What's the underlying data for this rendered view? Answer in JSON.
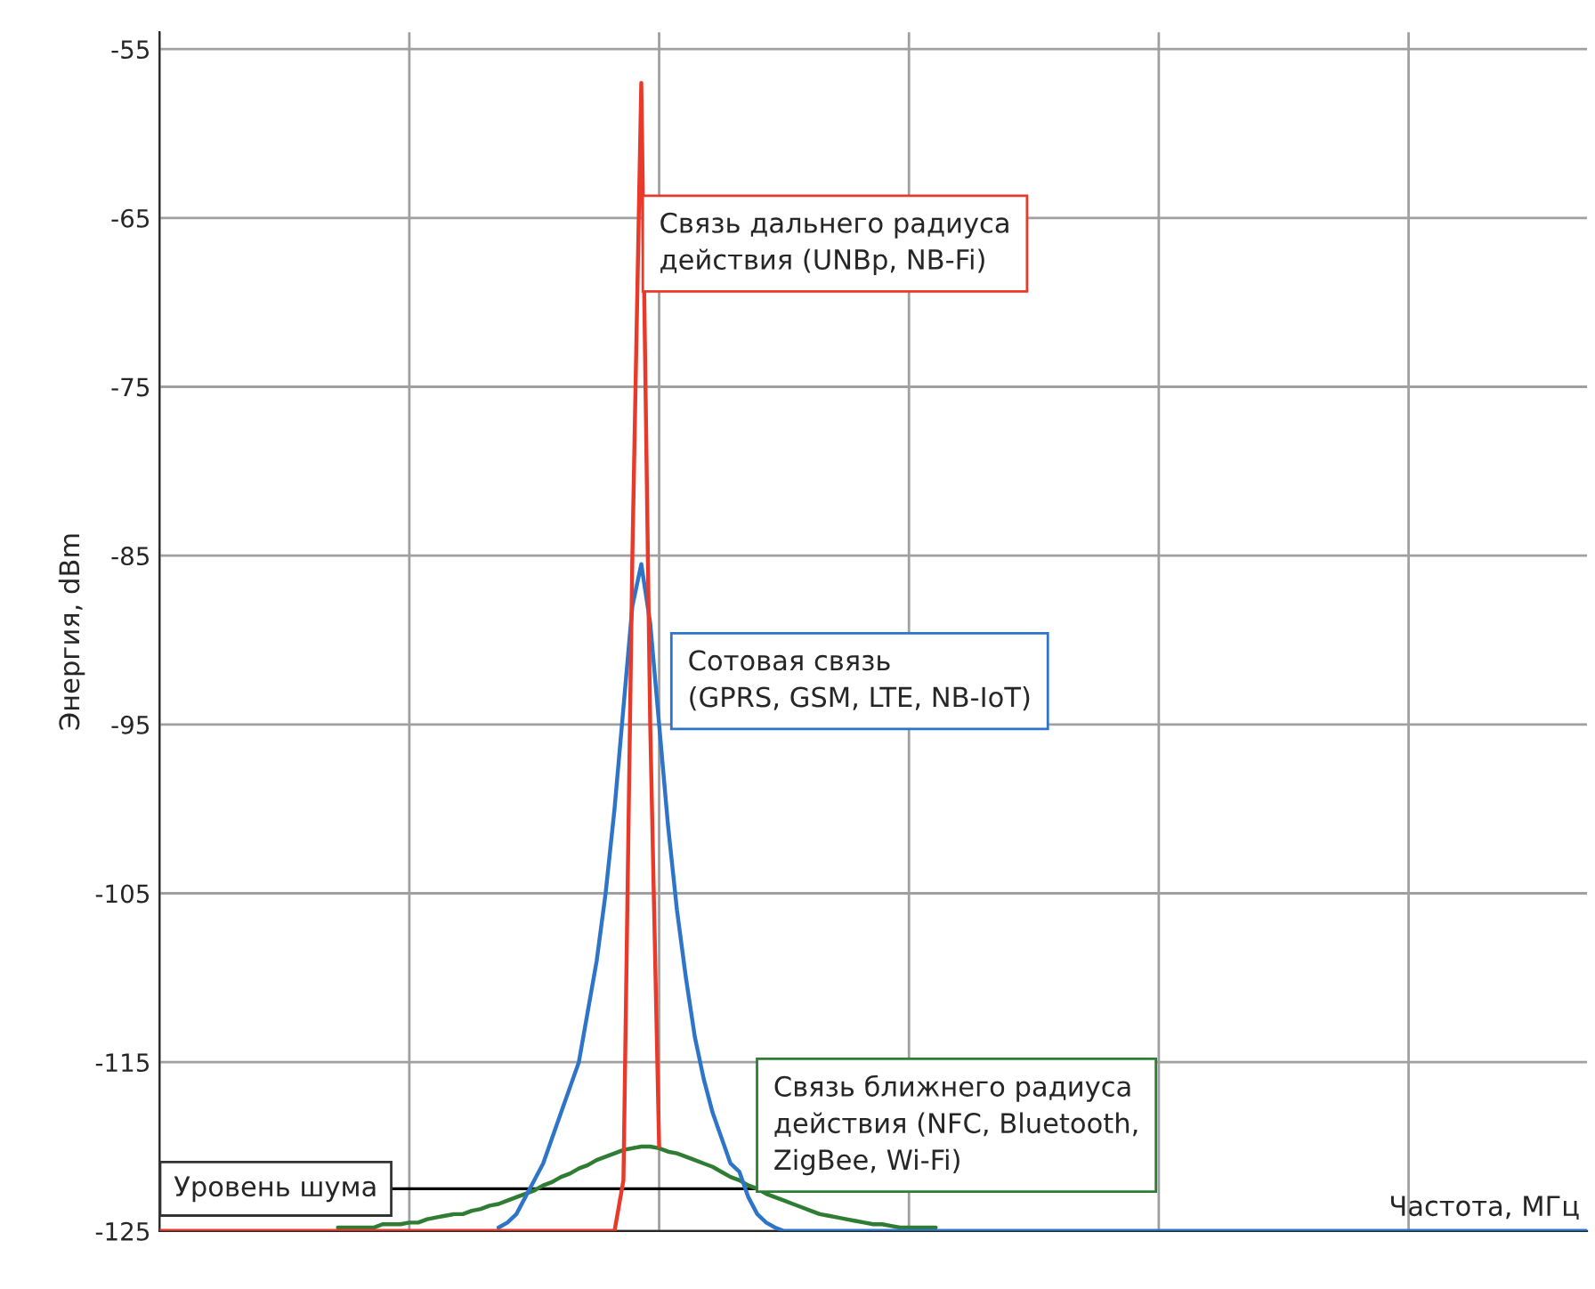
{
  "chart_data": {
    "type": "line",
    "ylabel": "Энергия, dBm",
    "xlabel": "Частота, МГц",
    "categories": [
      null,
      null,
      null,
      null,
      null,
      null,
      null,
      null,
      null,
      null,
      null,
      null,
      null,
      null,
      null,
      null,
      null,
      null,
      null,
      null,
      null,
      null,
      null,
      null,
      null,
      null,
      null,
      null,
      null,
      null,
      null,
      null,
      null,
      null,
      null,
      null,
      null,
      null,
      null,
      null,
      null,
      null,
      null,
      null,
      null,
      null,
      null,
      null,
      null,
      null,
      null,
      null,
      null,
      null,
      null,
      null,
      null,
      null,
      null,
      null,
      null,
      null,
      null,
      null,
      null,
      null,
      null,
      null,
      null,
      null,
      null,
      null,
      null,
      null,
      null,
      null,
      null,
      null,
      null,
      null,
      null,
      null,
      null,
      null,
      null,
      null,
      null,
      null,
      null,
      null,
      null,
      null,
      null,
      null,
      null,
      null,
      null,
      null,
      null,
      null,
      null,
      null,
      null,
      null,
      null,
      null,
      null,
      null,
      null,
      null,
      null,
      null,
      null,
      null,
      null,
      null,
      null,
      null,
      null,
      null,
      null,
      null,
      null,
      null,
      null,
      null,
      null,
      null,
      null,
      null,
      null,
      null,
      null,
      null,
      null,
      null,
      null,
      null,
      null,
      null,
      null,
      null,
      null,
      null,
      null,
      null,
      null,
      null,
      null,
      null,
      null,
      null,
      null,
      null,
      null,
      null,
      null,
      null,
      null,
      null,
      null
    ],
    "series": [
      {
        "color": "#e8392b",
        "values": [
          -125,
          -125,
          -125,
          -125,
          -125,
          -125,
          -125,
          -125,
          -125,
          -125,
          -125,
          -125,
          -125,
          -125,
          -125,
          -125,
          -125,
          -125,
          -125,
          -125,
          -125,
          -125,
          -125,
          -125,
          -125,
          -125,
          -125,
          -125,
          -125,
          -125,
          -125,
          -125,
          -125,
          -125,
          -125,
          -125,
          -125,
          -125,
          -125,
          -125,
          -125,
          -125,
          -125,
          -125,
          -125,
          -125,
          -125,
          -125,
          -125,
          -125,
          -125,
          -125,
          -122,
          -85,
          -57,
          -95,
          -120,
          null,
          null,
          null,
          null,
          null,
          null,
          null,
          null,
          null,
          null,
          null,
          null,
          null,
          null,
          null,
          null,
          null,
          null,
          null,
          null,
          null,
          null,
          null,
          null,
          null,
          null,
          null,
          null,
          null,
          null,
          null,
          null,
          null,
          null,
          null,
          null,
          null,
          null,
          null,
          null,
          null,
          null,
          null,
          null,
          null,
          null,
          null,
          null,
          null,
          null,
          null,
          null,
          null,
          null,
          null,
          null,
          null,
          null,
          null,
          null,
          null,
          null,
          null,
          null,
          null,
          null,
          null,
          null,
          null,
          null,
          null,
          null,
          null,
          null,
          null,
          null,
          null,
          null,
          null,
          null,
          null,
          null,
          null,
          null,
          null,
          null,
          null,
          null,
          null,
          null,
          null,
          null,
          null,
          null,
          null,
          null,
          null,
          null,
          null,
          null,
          null,
          null,
          null,
          null
        ]
      },
      {
        "color": "#2e74c8",
        "values": [
          null,
          null,
          null,
          null,
          null,
          null,
          null,
          null,
          null,
          null,
          null,
          null,
          null,
          null,
          null,
          null,
          null,
          null,
          null,
          null,
          null,
          null,
          null,
          null,
          null,
          null,
          null,
          null,
          null,
          null,
          null,
          null,
          null,
          null,
          null,
          null,
          null,
          null,
          -124.8,
          -124.5,
          -124,
          -123,
          -122,
          -121,
          -119.5,
          -118,
          -116.5,
          -115,
          -112,
          -109,
          -105,
          -100,
          -94,
          -88,
          -85.5,
          -89,
          -95,
          -101,
          -106,
          -110,
          -113.5,
          -116,
          -118,
          -119.5,
          -121,
          -121.5,
          -123,
          -124,
          -124.5,
          -124.8,
          -125,
          -125,
          -125,
          -125,
          -125,
          -125,
          -125,
          -125,
          -125,
          -125,
          -125,
          -125,
          -125,
          -125,
          -125,
          -125,
          -125,
          -125,
          -125,
          -125,
          -125,
          -125,
          -125,
          -125,
          -125,
          -125,
          -125,
          -125,
          -125,
          -125,
          -125,
          -125,
          -125,
          -125,
          -125,
          -125,
          -125,
          -125,
          -125,
          -125,
          -125,
          -125,
          -125,
          -125,
          -125,
          -125,
          -125,
          -125,
          -125,
          -125,
          -125,
          -125,
          -125,
          -125,
          -125,
          -125,
          -125,
          -125,
          -125,
          -125,
          -125,
          -125,
          -125,
          -125,
          -125,
          -125,
          -125,
          -125,
          -125,
          -125,
          -125,
          -125,
          -125,
          -125,
          -125,
          -125,
          -125,
          -125,
          -125,
          -125,
          -125,
          -125,
          -125,
          -125,
          -125,
          -125,
          -125,
          -125,
          -125,
          -125,
          -125
        ]
      },
      {
        "color": "#2e7d32",
        "values": [
          null,
          null,
          null,
          null,
          null,
          null,
          null,
          null,
          null,
          null,
          null,
          null,
          null,
          null,
          null,
          null,
          null,
          null,
          null,
          null,
          -124.8,
          -124.8,
          -124.8,
          -124.8,
          -124.8,
          -124.6,
          -124.6,
          -124.6,
          -124.5,
          -124.5,
          -124.3,
          -124.2,
          -124.1,
          -124,
          -124,
          -123.8,
          -123.7,
          -123.5,
          -123.4,
          -123.2,
          -123,
          -122.8,
          -122.6,
          -122.3,
          -122.1,
          -121.8,
          -121.6,
          -121.3,
          -121.1,
          -120.8,
          -120.6,
          -120.4,
          -120.2,
          -120.1,
          -120,
          -120,
          -120.1,
          -120.3,
          -120.4,
          -120.6,
          -120.8,
          -121,
          -121.2,
          -121.5,
          -121.8,
          -122,
          -122.3,
          -122.5,
          -122.8,
          -123,
          -123.2,
          -123.4,
          -123.6,
          -123.8,
          -124,
          -124.1,
          -124.2,
          -124.3,
          -124.4,
          -124.5,
          -124.6,
          -124.6,
          -124.7,
          -124.8,
          -124.8,
          -124.8,
          -124.8,
          -124.8,
          null,
          null,
          null,
          null,
          null,
          null,
          null,
          null,
          null,
          null,
          null,
          null,
          null,
          null,
          null,
          null,
          null,
          null,
          null,
          null,
          null,
          null,
          null,
          null,
          null,
          null,
          null,
          null,
          null,
          null,
          null,
          null,
          null,
          null,
          null,
          null,
          null,
          null,
          null,
          null,
          null,
          null,
          null,
          null,
          null,
          null,
          null,
          null,
          null,
          null,
          null,
          null,
          null,
          null,
          null,
          null,
          null,
          null,
          null,
          null,
          null,
          null,
          null,
          null,
          null,
          null,
          null,
          null,
          null,
          null,
          null,
          null,
          null
        ]
      }
    ],
    "ylim": [
      -125,
      -54
    ],
    "yticks": [
      -125,
      -115,
      -105,
      -95,
      -85,
      -75,
      -65,
      -55
    ],
    "grid": true,
    "ref_lines": [
      {
        "axis": "y",
        "value": -122.5,
        "label": "Уровень шума",
        "color": "#000000"
      }
    ],
    "annotations": [
      "Связь дальнего радиуса\nдействия (UNBp, NB-Fi)",
      "Сотовая связь\n(GPRS, GSM, LTE, NB-IoT)",
      "Связь ближнего радиуса\nдействия (NFC, Bluetooth,\nZigBee, Wi-Fi)"
    ]
  }
}
